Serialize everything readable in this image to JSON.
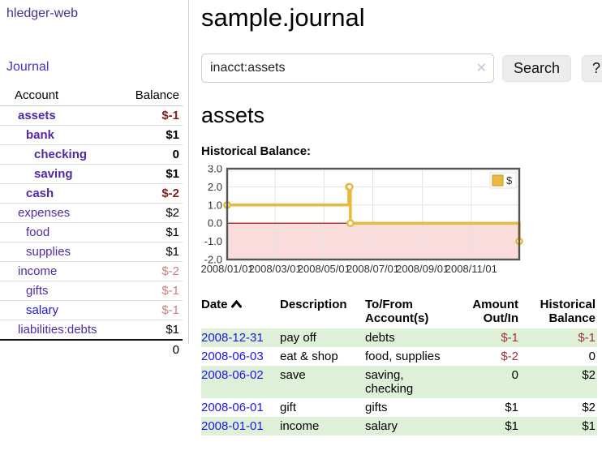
{
  "app": {
    "brand": "hledger-web"
  },
  "colors": {
    "purple_link": "#5229a3",
    "blue_link": "#1d16e0",
    "negative_strong": "#8b1a1a",
    "negative_weak": "#c87f7e",
    "row_green": "#dff0d8",
    "chart_line": "#e7b93f",
    "chart_negative_fill": "#fadcdc",
    "chart_zero_line": "#8b0000"
  },
  "sidebar": {
    "journal_link": "Journal",
    "table": {
      "headers": {
        "account": "Account",
        "balance": "Balance"
      },
      "rows": [
        {
          "name": "assets",
          "balance": "$-1",
          "depth": 0,
          "bold": true,
          "neg_strong": true
        },
        {
          "name": "bank",
          "balance": "$1",
          "depth": 1,
          "bold": true
        },
        {
          "name": "checking",
          "balance": "0",
          "depth": 2,
          "bold": true
        },
        {
          "name": "saving",
          "balance": "$1",
          "depth": 2,
          "bold": true
        },
        {
          "name": "cash",
          "balance": "$-2",
          "depth": 1,
          "bold": true,
          "neg_strong": true
        },
        {
          "name": "expenses",
          "balance": "$2",
          "depth": 0
        },
        {
          "name": "food",
          "balance": "$1",
          "depth": 1
        },
        {
          "name": "supplies",
          "balance": "$1",
          "depth": 1
        },
        {
          "name": "income",
          "balance": "$-2",
          "depth": 0,
          "neg_weak": true
        },
        {
          "name": "gifts",
          "balance": "$-1",
          "depth": 1,
          "neg_weak": true
        },
        {
          "name": "salary",
          "balance": "$-1",
          "depth": 1,
          "neg_weak": true,
          "unvisited": true
        },
        {
          "name": "liabilities:debts",
          "balance": "$1",
          "depth": 0
        }
      ],
      "total": "0"
    }
  },
  "main": {
    "title": "sample.journal",
    "search": {
      "value": "inacct:assets",
      "clear_icon": "✕",
      "button_label": "Search",
      "help_label": "?"
    },
    "account_heading": "assets",
    "chart_heading": "Historical Balance:"
  },
  "chart_data": {
    "type": "line",
    "step": true,
    "title": "Historical Balance",
    "series": [
      {
        "name": "$",
        "color": "#e7b93f",
        "points": [
          [
            "2008-01-01",
            1
          ],
          [
            "2008-06-01",
            2
          ],
          [
            "2008-06-02",
            2
          ],
          [
            "2008-06-03",
            0
          ],
          [
            "2008-12-31",
            -1
          ]
        ]
      }
    ],
    "x_range": [
      "2008-01-01",
      "2008-12-31"
    ],
    "x_ticks": [
      "2008/01/01",
      "2008/03/01",
      "2008/05/01",
      "2008/07/01",
      "2008/09/01",
      "2008/11/01"
    ],
    "y_ticks": [
      3.0,
      2.0,
      1.0,
      0.0,
      -1.0,
      -2.0
    ],
    "ylim": [
      -2,
      3
    ],
    "grid": true,
    "legend": {
      "label": "$",
      "position": "top-right"
    },
    "negative_region_color": "#fadcdc",
    "zero_line_color": "#8b0000"
  },
  "register": {
    "headers": {
      "date": "Date",
      "description": "Description",
      "accounts": "To/From Account(s)",
      "amount": "Amount Out/In",
      "balance": "Historical Balance"
    },
    "rows": [
      {
        "date": "2008-12-31",
        "description": "pay off",
        "accounts": "debts",
        "amount": "$-1",
        "balance": "$-1",
        "amount_neg": true,
        "balance_neg": true
      },
      {
        "date": "2008-06-03",
        "description": "eat & shop",
        "accounts": "food, supplies",
        "amount": "$-2",
        "balance": "0",
        "amount_neg": true
      },
      {
        "date": "2008-06-02",
        "description": "save",
        "accounts": "saving, checking",
        "amount": "0",
        "balance": "$2"
      },
      {
        "date": "2008-06-01",
        "description": "gift",
        "accounts": "gifts",
        "amount": "$1",
        "balance": "$2"
      },
      {
        "date": "2008-01-01",
        "description": "income",
        "accounts": "salary",
        "amount": "$1",
        "balance": "$1"
      }
    ]
  }
}
